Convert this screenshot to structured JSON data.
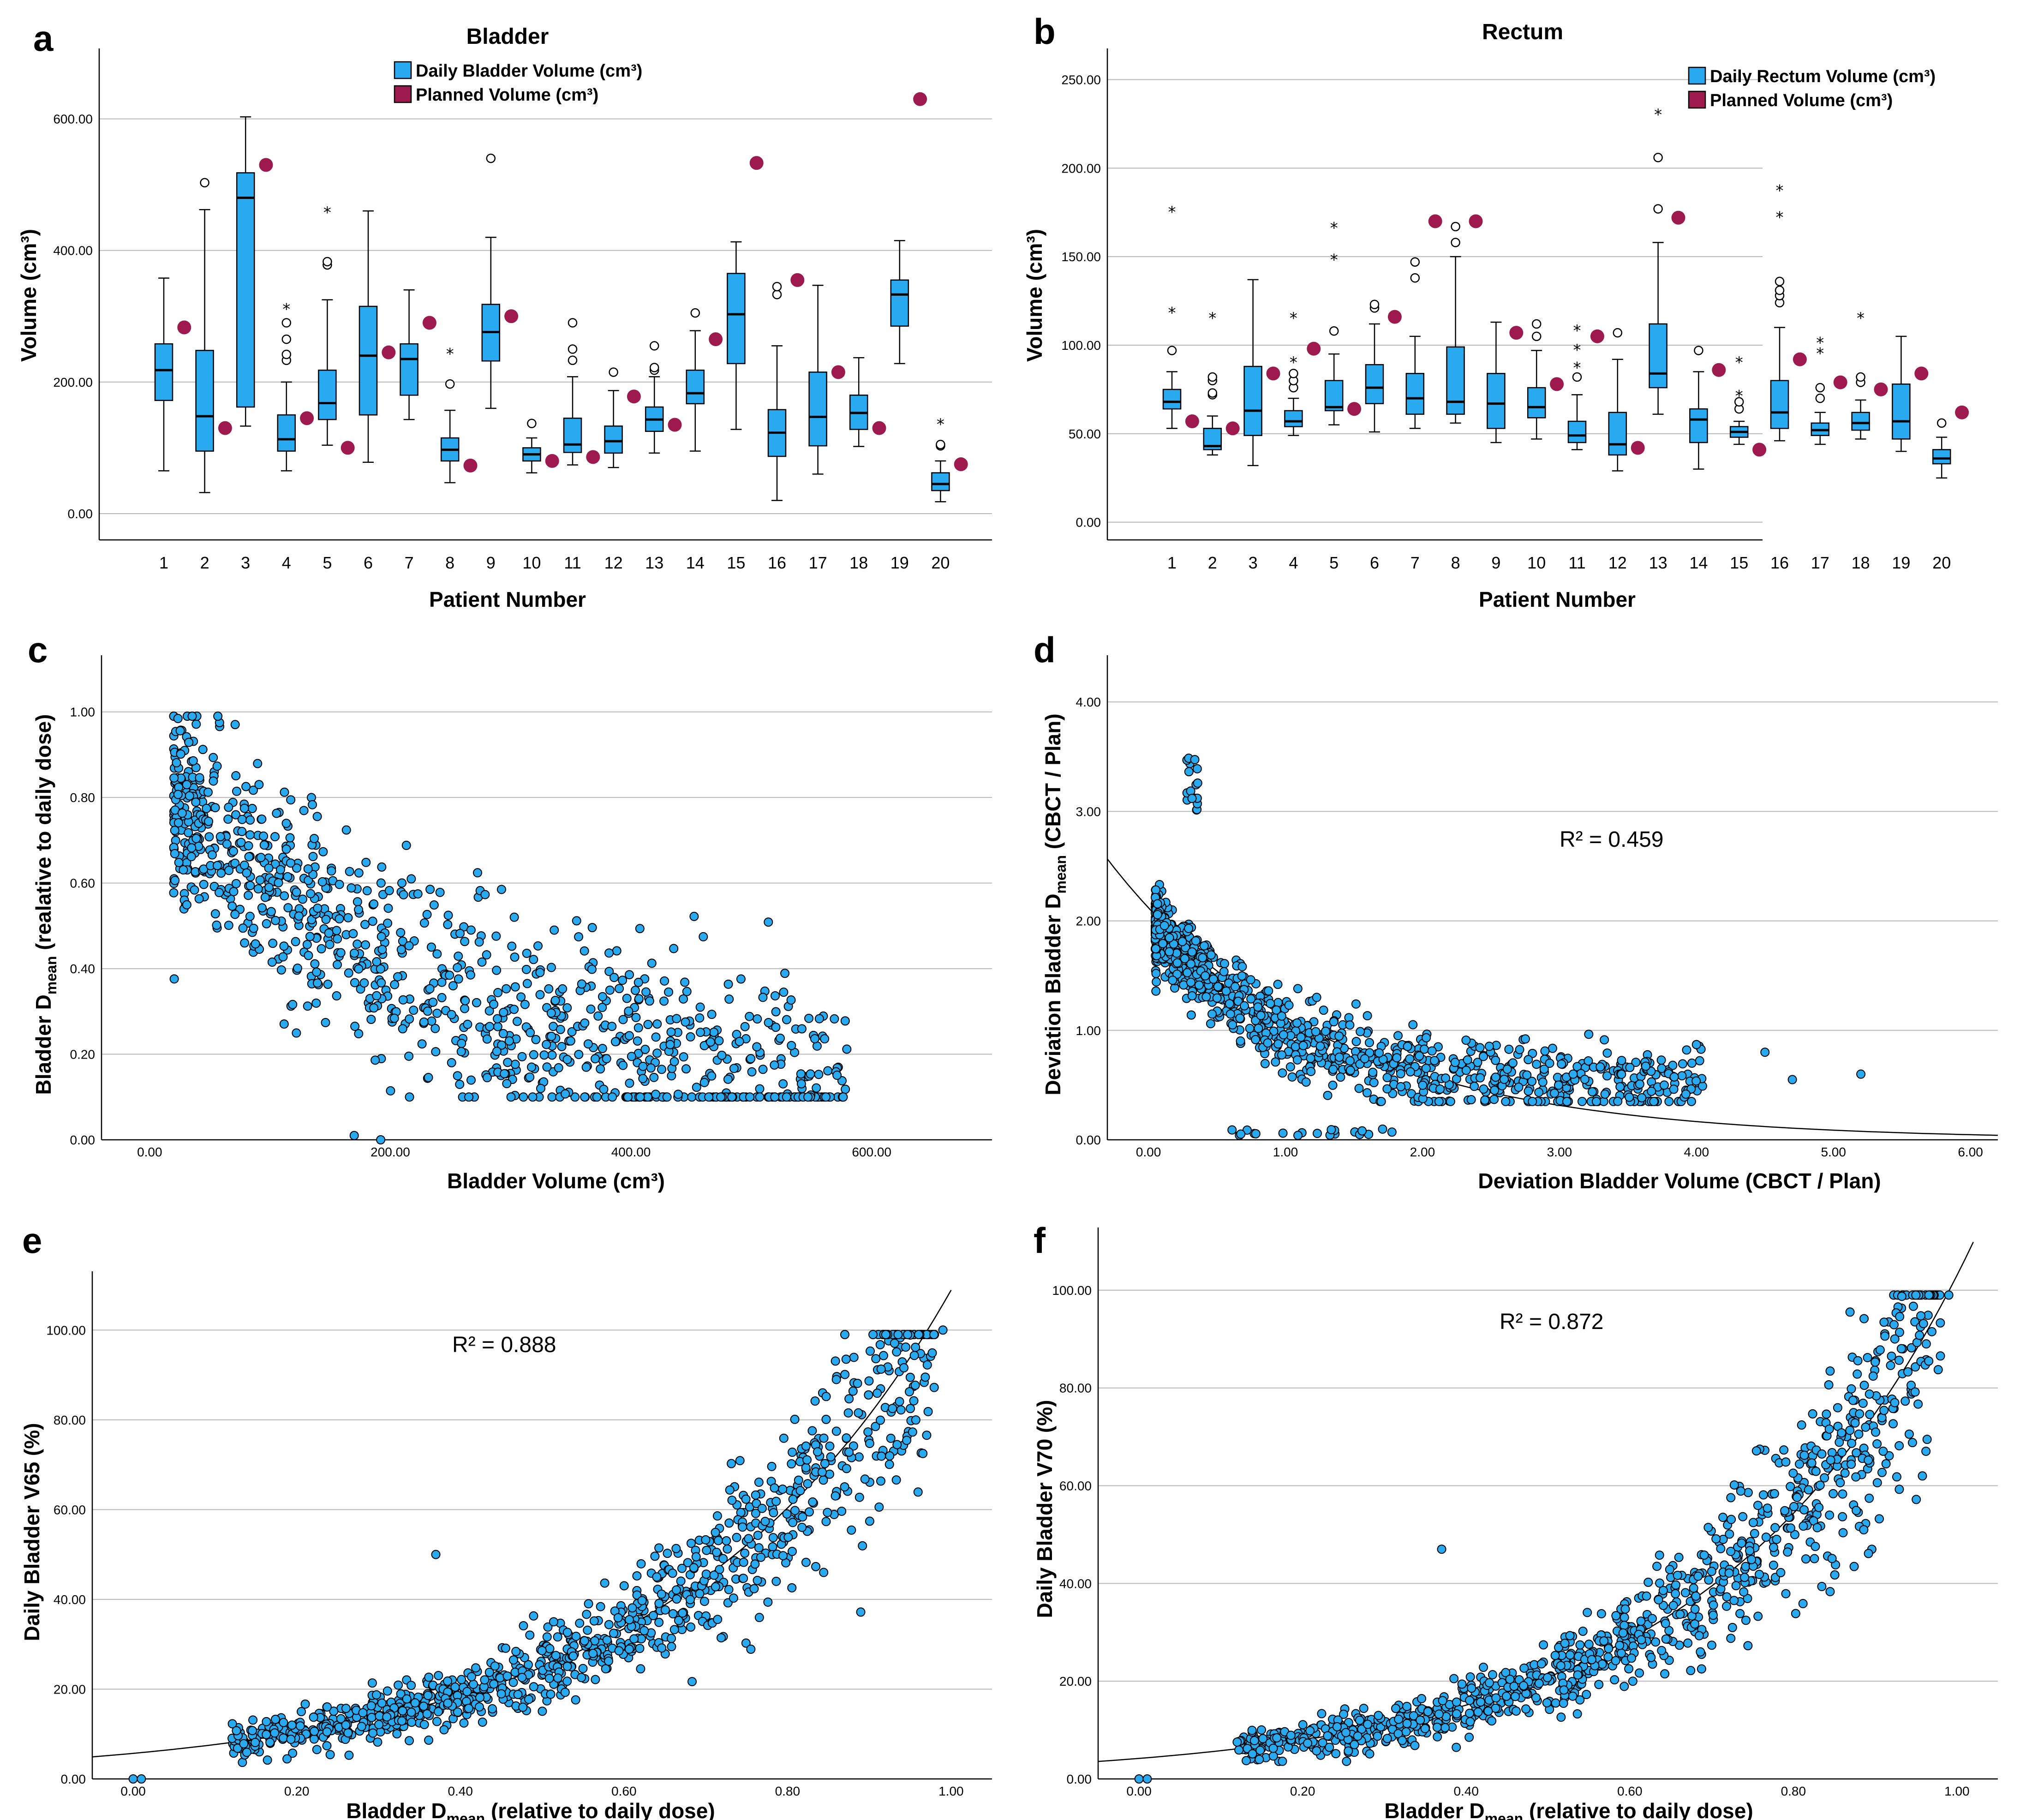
{
  "colors": {
    "daily": "#28A9F0",
    "planned": "#9E1A4E",
    "grid": "#b8b8b8"
  },
  "chart_data": [
    {
      "panel": "a",
      "type": "box",
      "title": "Bladder",
      "xlabel": "Patient Number",
      "ylabel": "Volume (cm³)",
      "ylim": [
        -40,
        700
      ],
      "yticks": [
        0,
        200,
        400,
        600
      ],
      "ytick_labels": [
        "0.00",
        "200.00",
        "400.00",
        "600.00"
      ],
      "legend": [
        "Daily Bladder Volume (cm³)",
        "Planned Volume (cm³)"
      ],
      "categories": [
        "1",
        "2",
        "3",
        "4",
        "5",
        "6",
        "7",
        "8",
        "9",
        "10",
        "11",
        "12",
        "13",
        "14",
        "15",
        "16",
        "17",
        "18",
        "19",
        "20"
      ],
      "boxes": [
        {
          "min": 65,
          "q1": 172,
          "med": 218,
          "q3": 258,
          "max": 358,
          "outliers_o": [],
          "outliers_s": []
        },
        {
          "min": 32,
          "q1": 95,
          "med": 148,
          "q3": 248,
          "max": 462,
          "outliers_o": [
            503
          ],
          "outliers_s": []
        },
        {
          "min": 133,
          "q1": 162,
          "med": 480,
          "q3": 518,
          "max": 603,
          "outliers_o": [],
          "outliers_s": []
        },
        {
          "min": 65,
          "q1": 95,
          "med": 113,
          "q3": 150,
          "max": 200,
          "outliers_o": [
            233,
            242,
            265,
            290
          ],
          "outliers_s": [
            318
          ]
        },
        {
          "min": 104,
          "q1": 143,
          "med": 168,
          "q3": 218,
          "max": 325,
          "outliers_o": [
            378,
            383
          ],
          "outliers_s": [
            465
          ]
        },
        {
          "min": 78,
          "q1": 150,
          "med": 240,
          "q3": 315,
          "max": 460,
          "outliers_o": [],
          "outliers_s": []
        },
        {
          "min": 143,
          "q1": 180,
          "med": 235,
          "q3": 258,
          "max": 340,
          "outliers_o": [],
          "outliers_s": []
        },
        {
          "min": 47,
          "q1": 80,
          "med": 97,
          "q3": 115,
          "max": 157,
          "outliers_o": [
            197
          ],
          "outliers_s": [
            250
          ]
        },
        {
          "min": 160,
          "q1": 232,
          "med": 276,
          "q3": 318,
          "max": 420,
          "outliers_o": [
            540
          ],
          "outliers_s": []
        },
        {
          "min": 62,
          "q1": 80,
          "med": 90,
          "q3": 100,
          "max": 115,
          "outliers_o": [
            137
          ],
          "outliers_s": []
        },
        {
          "min": 74,
          "q1": 93,
          "med": 105,
          "q3": 145,
          "max": 208,
          "outliers_o": [
            233,
            250,
            290
          ],
          "outliers_s": []
        },
        {
          "min": 70,
          "q1": 92,
          "med": 110,
          "q3": 133,
          "max": 187,
          "outliers_o": [
            215
          ],
          "outliers_s": []
        },
        {
          "min": 92,
          "q1": 125,
          "med": 143,
          "q3": 162,
          "max": 208,
          "outliers_o": [
            218,
            222,
            255
          ],
          "outliers_s": []
        },
        {
          "min": 95,
          "q1": 167,
          "med": 183,
          "q3": 218,
          "max": 278,
          "outliers_o": [
            305
          ],
          "outliers_s": []
        },
        {
          "min": 128,
          "q1": 228,
          "med": 303,
          "q3": 365,
          "max": 413,
          "outliers_o": [],
          "outliers_s": []
        },
        {
          "min": 20,
          "q1": 87,
          "med": 123,
          "q3": 158,
          "max": 255,
          "outliers_o": [
            333,
            345
          ],
          "outliers_s": []
        },
        {
          "min": 60,
          "q1": 103,
          "med": 147,
          "q3": 215,
          "max": 347,
          "outliers_o": [],
          "outliers_s": []
        },
        {
          "min": 102,
          "q1": 128,
          "med": 153,
          "q3": 180,
          "max": 237,
          "outliers_o": [],
          "outliers_s": []
        },
        {
          "min": 228,
          "q1": 285,
          "med": 333,
          "q3": 355,
          "max": 415,
          "outliers_o": [],
          "outliers_s": []
        },
        {
          "min": 18,
          "q1": 35,
          "med": 45,
          "q3": 62,
          "max": 80,
          "outliers_o": [
            103,
            105
          ],
          "outliers_s": [
            143
          ]
        }
      ],
      "planned": [
        283,
        130,
        530,
        145,
        100,
        245,
        290,
        73,
        300,
        80,
        86,
        178,
        135,
        265,
        533,
        355,
        215,
        130,
        630,
        75
      ]
    },
    {
      "panel": "b",
      "type": "box",
      "title": "Rectum",
      "xlabel": "Patient Number",
      "ylabel": "Volume (cm³)",
      "ylim": [
        -10,
        265
      ],
      "yticks": [
        0,
        50,
        100,
        150,
        200,
        250
      ],
      "ytick_labels": [
        "0.00",
        "50.00",
        "100.00",
        "150.00",
        "200.00",
        "250.00"
      ],
      "legend": [
        "Daily Rectum Volume (cm³)",
        "Planned Volume (cm³)"
      ],
      "categories": [
        "1",
        "2",
        "3",
        "4",
        "5",
        "6",
        "7",
        "8",
        "9",
        "10",
        "11",
        "12",
        "13",
        "14",
        "15",
        "16",
        "17",
        "18",
        "19",
        "20"
      ],
      "boxes": [
        {
          "min": 53,
          "q1": 64,
          "med": 68,
          "q3": 75,
          "max": 85,
          "outliers_o": [
            97
          ],
          "outliers_s": [
            121,
            178
          ]
        },
        {
          "min": 38,
          "q1": 41,
          "med": 43,
          "q3": 53,
          "max": 60,
          "outliers_o": [
            72,
            73,
            80,
            82
          ],
          "outliers_s": [
            118
          ]
        },
        {
          "min": 32,
          "q1": 49,
          "med": 63,
          "q3": 88,
          "max": 137,
          "outliers_o": [],
          "outliers_s": []
        },
        {
          "min": 49,
          "q1": 54,
          "med": 57,
          "q3": 63,
          "max": 70,
          "outliers_o": [
            76,
            80,
            84
          ],
          "outliers_s": [
            93,
            118
          ]
        },
        {
          "min": 55,
          "q1": 63,
          "med": 65,
          "q3": 80,
          "max": 95,
          "outliers_o": [
            108
          ],
          "outliers_s": [
            151,
            169
          ]
        },
        {
          "min": 51,
          "q1": 67,
          "med": 76,
          "q3": 89,
          "max": 112,
          "outliers_o": [
            121,
            123
          ],
          "outliers_s": []
        },
        {
          "min": 53,
          "q1": 61,
          "med": 70,
          "q3": 84,
          "max": 105,
          "outliers_o": [
            138,
            147
          ],
          "outliers_s": []
        },
        {
          "min": 56,
          "q1": 61,
          "med": 68,
          "q3": 99,
          "max": 150,
          "outliers_o": [
            158,
            167
          ],
          "outliers_s": []
        },
        {
          "min": 45,
          "q1": 53,
          "med": 67,
          "q3": 84,
          "max": 113,
          "outliers_o": [],
          "outliers_s": []
        },
        {
          "min": 47,
          "q1": 59,
          "med": 65,
          "q3": 76,
          "max": 97,
          "outliers_o": [
            105,
            112
          ],
          "outliers_s": []
        },
        {
          "min": 41,
          "q1": 45,
          "med": 49,
          "q3": 57,
          "max": 72,
          "outliers_o": [
            82
          ],
          "outliers_s": [
            90,
            100,
            111
          ]
        },
        {
          "min": 29,
          "q1": 38,
          "med": 44,
          "q3": 62,
          "max": 92,
          "outliers_o": [
            107
          ],
          "outliers_s": []
        },
        {
          "min": 61,
          "q1": 76,
          "med": 84,
          "q3": 112,
          "max": 158,
          "outliers_o": [
            177,
            206
          ],
          "outliers_s": [
            233
          ]
        },
        {
          "min": 30,
          "q1": 45,
          "med": 58,
          "q3": 64,
          "max": 85,
          "outliers_o": [
            97
          ],
          "outliers_s": []
        },
        {
          "min": 44,
          "q1": 48,
          "med": 51,
          "q3": 54,
          "max": 57,
          "outliers_o": [
            64,
            68
          ],
          "outliers_s": [
            74,
            93
          ]
        },
        {
          "min": 46,
          "q1": 53,
          "med": 62,
          "q3": 80,
          "max": 110,
          "outliers_o": [
            124,
            128,
            131,
            136
          ],
          "outliers_s": [
            175,
            190
          ]
        },
        {
          "min": 44,
          "q1": 49,
          "med": 52,
          "q3": 56,
          "max": 62,
          "outliers_o": [
            70,
            76
          ],
          "outliers_s": [
            98,
            104
          ]
        },
        {
          "min": 47,
          "q1": 52,
          "med": 56,
          "q3": 62,
          "max": 69,
          "outliers_o": [
            79,
            82
          ],
          "outliers_s": [
            118
          ]
        },
        {
          "min": 40,
          "q1": 47,
          "med": 57,
          "q3": 78,
          "max": 105,
          "outliers_o": [],
          "outliers_s": []
        },
        {
          "min": 25,
          "q1": 33,
          "med": 36,
          "q3": 41,
          "max": 48,
          "outliers_o": [
            56
          ],
          "outliers_s": []
        }
      ],
      "planned": [
        57,
        53,
        84,
        98,
        64,
        116,
        170,
        170,
        107,
        78,
        105,
        42,
        172,
        86,
        41,
        92,
        79,
        75,
        84,
        62
      ]
    },
    {
      "panel": "c",
      "type": "scatter",
      "xlabel": "Bladder Volume (cm³)",
      "ylabel_main": "Bladder D",
      "ylabel_sub": "mean",
      "ylabel_rest": " (realative to daily dose)",
      "xlim": [
        -40,
        700
      ],
      "ylim": [
        0,
        1.1
      ],
      "xticks": [
        0,
        200,
        400,
        600
      ],
      "xtick_labels": [
        "0.00",
        "200.00",
        "400.00",
        "600.00"
      ],
      "yticks": [
        0,
        0.2,
        0.4,
        0.6,
        0.8,
        1.0
      ],
      "ytick_labels": [
        "0.00",
        "0.20",
        "0.40",
        "0.60",
        "0.80",
        "1.00"
      ],
      "model": "d = 0.05 + 0.8*exp(-v/260) with scatter; approx. 1000 daily fractions",
      "n_points": 1000
    },
    {
      "panel": "d",
      "type": "scatter",
      "xlabel": "Deviation Bladder Volume (CBCT / Plan)",
      "ylabel_main": "Deviation Bladder D",
      "ylabel_sub": "mean",
      "ylabel_rest": " (CBCT / Plan)",
      "xlim": [
        -0.3,
        6.2
      ],
      "ylim": [
        0,
        4.3
      ],
      "xticks": [
        0,
        1,
        2,
        3,
        4,
        5,
        6
      ],
      "xtick_labels": [
        "0.00",
        "1.00",
        "2.00",
        "3.00",
        "4.00",
        "5.00",
        "6.00"
      ],
      "yticks": [
        0,
        1,
        2,
        3,
        4
      ],
      "ytick_labels": [
        "0.00",
        "1.00",
        "2.00",
        "3.00",
        "4.00"
      ],
      "r2": "R² = 0.459",
      "fit": {
        "a": 2.12,
        "b": -0.636
      },
      "n_points": 1000
    },
    {
      "panel": "e",
      "type": "scatter",
      "xlabel_main": "Bladder D",
      "xlabel_sub": "mean",
      "xlabel_rest": " (relative to daily dose)",
      "ylabel": "Daily Bladder V65 (%)",
      "xlim": [
        -0.05,
        1.05
      ],
      "ylim": [
        0,
        110
      ],
      "xticks": [
        0,
        0.2,
        0.4,
        0.6,
        0.8,
        1.0
      ],
      "xtick_labels": [
        "0.00",
        "0.20",
        "0.40",
        "0.60",
        "0.80",
        "1.00"
      ],
      "yticks": [
        0,
        20,
        40,
        60,
        80,
        100
      ],
      "ytick_labels": [
        "0.00",
        "20.00",
        "40.00",
        "60.00",
        "80.00",
        "100.00"
      ],
      "r2": "R² = 0.888",
      "fit": {
        "a": 5.7,
        "b": 2.95
      },
      "n_points": 1000
    },
    {
      "panel": "f",
      "type": "scatter",
      "xlabel_main": "Bladder D",
      "xlabel_sub": "mean",
      "xlabel_rest": " (relative to daily dose)",
      "ylabel": "Daily Bladder V70 (%)",
      "xlim": [
        -0.05,
        1.05
      ],
      "ylim": [
        0,
        110
      ],
      "xticks": [
        0,
        0.2,
        0.4,
        0.6,
        0.8,
        1.0
      ],
      "xtick_labels": [
        "0.00",
        "0.20",
        "0.40",
        "0.60",
        "0.80",
        "1.00"
      ],
      "yticks": [
        0,
        20,
        40,
        60,
        80,
        100
      ],
      "ytick_labels": [
        "0.00",
        "20.00",
        "40.00",
        "60.00",
        "80.00",
        "100.00"
      ],
      "r2": "R² = 0.872",
      "fit": {
        "a": 4.2,
        "b": 3.2
      },
      "n_points": 1000
    }
  ]
}
